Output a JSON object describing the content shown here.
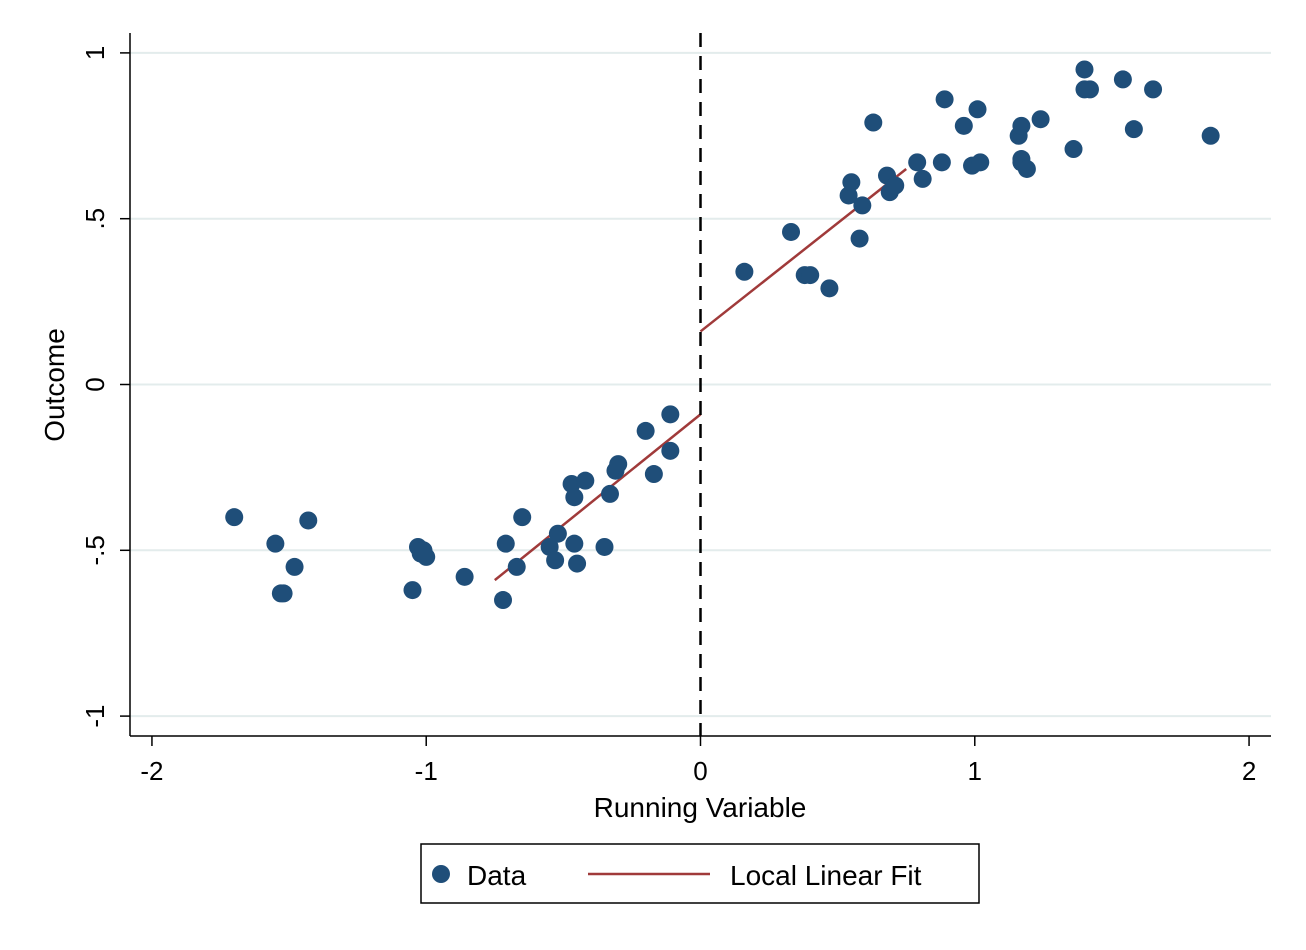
{
  "chart_data": {
    "type": "scatter",
    "xlabel": "Running Variable",
    "ylabel": "Outcome",
    "xlim": [
      -2.08,
      2.08
    ],
    "ylim": [
      -1.06,
      1.06
    ],
    "x_ticks": [
      -2,
      -1,
      0,
      1,
      2
    ],
    "x_tick_labels": [
      "-2",
      "-1",
      "0",
      "1",
      "2"
    ],
    "y_ticks": [
      -1,
      -0.5,
      0,
      0.5,
      1
    ],
    "y_tick_labels": [
      "-1",
      "-.5",
      "0",
      ".5",
      "1"
    ],
    "grid": "horizontal",
    "cutoff": 0,
    "legend": {
      "placement": "bottom",
      "entries": [
        {
          "label": "Data",
          "kind": "marker"
        },
        {
          "label": "Local Linear Fit",
          "kind": "line"
        }
      ]
    },
    "colors": {
      "data": "#1f4e79",
      "fit": "#a03a3a",
      "grid": "#e3ecec",
      "cutoff": "#000000"
    },
    "series": [
      {
        "name": "Data",
        "points": [
          [
            -1.7,
            -0.4
          ],
          [
            -1.55,
            -0.48
          ],
          [
            -1.53,
            -0.63
          ],
          [
            -1.52,
            -0.63
          ],
          [
            -1.48,
            -0.55
          ],
          [
            -1.43,
            -0.41
          ],
          [
            -1.05,
            -0.62
          ],
          [
            -1.03,
            -0.49
          ],
          [
            -1.02,
            -0.51
          ],
          [
            -1.01,
            -0.5
          ],
          [
            -1.0,
            -0.52
          ],
          [
            -0.86,
            -0.58
          ],
          [
            -0.72,
            -0.65
          ],
          [
            -0.71,
            -0.48
          ],
          [
            -0.67,
            -0.55
          ],
          [
            -0.65,
            -0.4
          ],
          [
            -0.55,
            -0.49
          ],
          [
            -0.53,
            -0.53
          ],
          [
            -0.52,
            -0.45
          ],
          [
            -0.47,
            -0.3
          ],
          [
            -0.46,
            -0.48
          ],
          [
            -0.46,
            -0.34
          ],
          [
            -0.45,
            -0.54
          ],
          [
            -0.42,
            -0.29
          ],
          [
            -0.35,
            -0.49
          ],
          [
            -0.33,
            -0.33
          ],
          [
            -0.31,
            -0.26
          ],
          [
            -0.3,
            -0.24
          ],
          [
            -0.2,
            -0.14
          ],
          [
            -0.17,
            -0.27
          ],
          [
            -0.11,
            -0.2
          ],
          [
            -0.11,
            -0.09
          ],
          [
            0.16,
            0.34
          ],
          [
            0.33,
            0.46
          ],
          [
            0.38,
            0.33
          ],
          [
            0.4,
            0.33
          ],
          [
            0.47,
            0.29
          ],
          [
            0.54,
            0.57
          ],
          [
            0.55,
            0.61
          ],
          [
            0.58,
            0.44
          ],
          [
            0.59,
            0.54
          ],
          [
            0.63,
            0.79
          ],
          [
            0.68,
            0.63
          ],
          [
            0.69,
            0.58
          ],
          [
            0.71,
            0.6
          ],
          [
            0.79,
            0.67
          ],
          [
            0.81,
            0.62
          ],
          [
            0.88,
            0.67
          ],
          [
            0.89,
            0.86
          ],
          [
            0.96,
            0.78
          ],
          [
            0.99,
            0.66
          ],
          [
            1.01,
            0.83
          ],
          [
            1.02,
            0.67
          ],
          [
            1.16,
            0.75
          ],
          [
            1.17,
            0.78
          ],
          [
            1.17,
            0.68
          ],
          [
            1.17,
            0.67
          ],
          [
            1.19,
            0.65
          ],
          [
            1.24,
            0.8
          ],
          [
            1.36,
            0.71
          ],
          [
            1.4,
            0.95
          ],
          [
            1.4,
            0.89
          ],
          [
            1.42,
            0.89
          ],
          [
            1.54,
            0.92
          ],
          [
            1.58,
            0.77
          ],
          [
            1.65,
            0.89
          ],
          [
            1.86,
            0.75
          ]
        ]
      },
      {
        "name": "Local Linear Fit",
        "segments": [
          [
            [
              -0.75,
              -0.59
            ],
            [
              0,
              -0.09
            ]
          ],
          [
            [
              0,
              0.16
            ],
            [
              0.75,
              0.65
            ]
          ]
        ]
      }
    ]
  }
}
